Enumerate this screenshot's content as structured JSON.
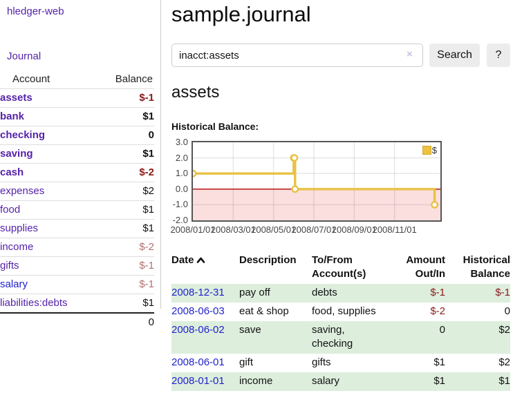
{
  "app": {
    "title": "hledger-web"
  },
  "sidebar": {
    "journal_link": "Journal",
    "accounts_table": {
      "header": {
        "account": "Account",
        "balance": "Balance"
      },
      "rows": [
        {
          "account": "assets",
          "balance": "$-1"
        },
        {
          "account": "bank",
          "balance": "$1"
        },
        {
          "account": "checking",
          "balance": "0"
        },
        {
          "account": "saving",
          "balance": "$1"
        },
        {
          "account": "cash",
          "balance": "$-2"
        },
        {
          "account": "expenses",
          "balance": "$2"
        },
        {
          "account": "food",
          "balance": "$1"
        },
        {
          "account": "supplies",
          "balance": "$1"
        },
        {
          "account": "income",
          "balance": "$-2"
        },
        {
          "account": "gifts",
          "balance": "$-1"
        },
        {
          "account": "salary",
          "balance": "$-1"
        },
        {
          "account": "liabilities:debts",
          "balance": "$1"
        }
      ],
      "total": "0"
    }
  },
  "main": {
    "title": "sample.journal",
    "search": {
      "value": "inacct:assets",
      "clear_icon": "×",
      "search_button": "Search",
      "help_button": "?"
    },
    "account_heading": "assets",
    "chart_title": "Historical Balance:"
  },
  "chart_data": {
    "type": "line",
    "line_style": "step",
    "title": "Historical Balance",
    "legend": {
      "label": "$",
      "position": "top-right"
    },
    "series": [
      {
        "name": "$",
        "color": "#e9c143",
        "points": [
          {
            "x": "2008-01-01",
            "y": 1
          },
          {
            "x": "2008-06-01",
            "y": 2
          },
          {
            "x": "2008-06-02",
            "y": 2
          },
          {
            "x": "2008-06-03",
            "y": 0
          },
          {
            "x": "2008-12-31",
            "y": -1
          }
        ]
      }
    ],
    "ylim": [
      -2,
      3
    ],
    "ytick_labels": [
      "3.0",
      "2.0",
      "1.0",
      "0.0",
      "-1.0",
      "-2.0"
    ],
    "xtick_labels": [
      "2008/01/01",
      "2008/03/01",
      "2008/05/01",
      "2008/07/01",
      "2008/09/01",
      "2008/11/01"
    ],
    "grid": true,
    "zero_line_color": "#b40000",
    "negative_region_color": "#fbdfdf"
  },
  "register": {
    "headers": [
      "Date",
      "Description",
      "To/From Account(s)",
      "Amount Out/In",
      "Historical Balance"
    ],
    "rows": [
      {
        "date": "2008-12-31",
        "description": "pay off",
        "accounts": "debts",
        "amount": "$-1",
        "balance": "$-1"
      },
      {
        "date": "2008-06-03",
        "description": "eat & shop",
        "accounts": "food, supplies",
        "amount": "$-2",
        "balance": "0"
      },
      {
        "date": "2008-06-02",
        "description": "save",
        "accounts": "saving, checking",
        "amount": "0",
        "balance": "$2"
      },
      {
        "date": "2008-06-01",
        "description": "gift",
        "accounts": "gifts",
        "amount": "$1",
        "balance": "$2"
      },
      {
        "date": "2008-01-01",
        "description": "income",
        "accounts": "salary",
        "amount": "$1",
        "balance": "$1"
      }
    ]
  }
}
